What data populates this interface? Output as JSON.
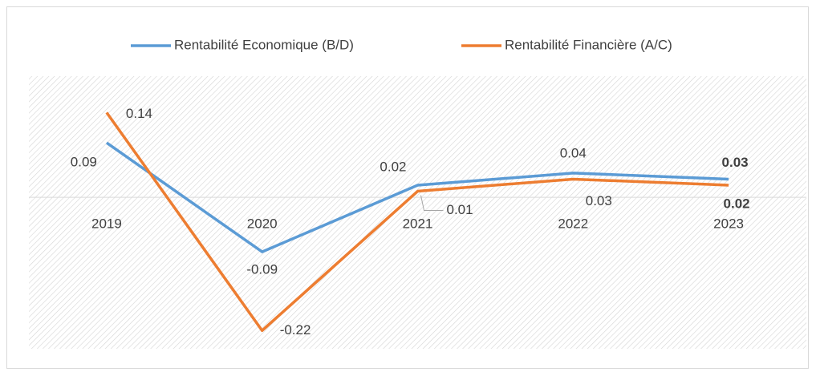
{
  "chart_data": {
    "type": "line",
    "categories": [
      "2019",
      "2020",
      "2021",
      "2022",
      "2023"
    ],
    "series": [
      {
        "name": "Rentabilité Economique (B/D)",
        "color": "#5b9bd5",
        "values": [
          0.09,
          -0.09,
          0.02,
          0.04,
          0.03
        ]
      },
      {
        "name": "Rentabilité Financière (A/C)",
        "color": "#ed7d31",
        "values": [
          0.14,
          -0.22,
          0.01,
          0.03,
          0.02
        ]
      }
    ],
    "ylim": [
      -0.25,
      0.2
    ],
    "legend": "top"
  }
}
